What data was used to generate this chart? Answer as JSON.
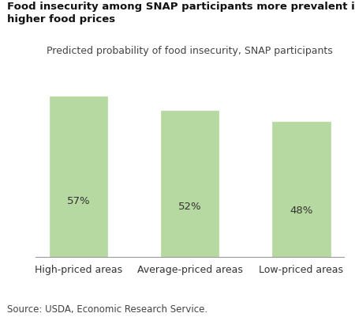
{
  "title_line1": "Food insecurity among SNAP participants more prevalent in areas with",
  "title_line2": "higher food prices",
  "subtitle": "Predicted probability of food insecurity, SNAP participants",
  "categories": [
    "High-priced areas",
    "Average-priced areas",
    "Low-priced areas"
  ],
  "values": [
    57,
    52,
    48
  ],
  "labels": [
    "57%",
    "52%",
    "48%"
  ],
  "bar_color": "#b5d9a0",
  "bar_edge_color": "#b5d9a0",
  "background_color": "#ffffff",
  "title_fontsize": 9.5,
  "subtitle_fontsize": 9.0,
  "label_fontsize": 9.5,
  "xticklabel_fontsize": 9.0,
  "source_text": "Source: USDA, Economic Research Service.",
  "source_fontsize": 8.5,
  "ylim": [
    0,
    68
  ],
  "bar_width": 0.52
}
